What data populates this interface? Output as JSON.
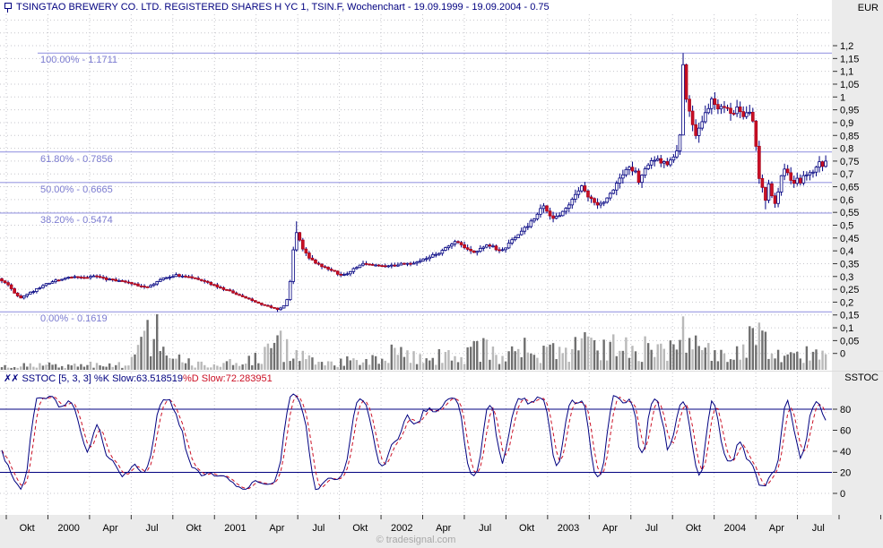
{
  "window": {
    "title": "TSINGTAO BREWERY CO. LTD. REGISTERED SHARES H YC 1, TSIN.F, Wochenchart - 19.09.1999 - 19.09.2004 - 0.75"
  },
  "watermark": "© tradesignal.com",
  "price_axis": {
    "unit": "EUR",
    "max": 1.2,
    "min": 0,
    "step": 0.05,
    "tick_labels": [
      "1,2",
      "1,15",
      "1,1",
      "1,05",
      "1",
      "0,95",
      "0,9",
      "0,85",
      "0,8",
      "0,75",
      "0,7",
      "0,65",
      "0,6",
      "0,55",
      "0,5",
      "0,45",
      "0,4",
      "0,35",
      "0,3",
      "0,25",
      "0,2",
      "0,15",
      "0,1",
      "0,05",
      "0"
    ]
  },
  "x_axis": {
    "tick_labels": [
      "Okt",
      "2000",
      "Apr",
      "Jul",
      "Okt",
      "2001",
      "Apr",
      "Jul",
      "Okt",
      "2002",
      "Apr",
      "Jul",
      "Okt",
      "2003",
      "Apr",
      "Jul",
      "Okt",
      "2004",
      "Apr",
      "Jul"
    ]
  },
  "sstoc": {
    "icon": "✗✗",
    "k_part": "SSTOC [5, 3, 3] %K Slow:63.518519",
    "d_part": "%D Slow:72.283951",
    "axis_title": "SSTOC",
    "y_ticks": [
      {
        "label": "80",
        "value": 80
      },
      {
        "label": "60",
        "value": 60
      },
      {
        "label": "40",
        "value": 40
      },
      {
        "label": "20",
        "value": 20
      },
      {
        "label": "0",
        "value": 0
      }
    ]
  },
  "colors": {
    "navy": "#000080",
    "red": "#cc1126",
    "red_edge": "#aa0018",
    "fib_line": "#9a9ae2",
    "fib_text": "#7b7bd0",
    "grid": "#c6c6cc",
    "vol_dark": "#6f6f6f",
    "vol_light": "#b9b9b9",
    "axis_text": "#000000",
    "tick": "#333333",
    "panel_bg": "#ffffff",
    "strip_bg": "#ebebeb"
  },
  "chart_data": [
    {
      "type": "candlestick",
      "title": "TSINGTAO BREWERY CO. LTD. REGISTERED SHARES H YC 1 (TSIN.F) weekly",
      "timeframe": "Wochenchart (weekly)",
      "period_start": "19.09.1999",
      "period_end": "19.09.2004",
      "ylabel": "EUR",
      "ylim": [
        0,
        1.2
      ],
      "grid": true,
      "n_candles": 261,
      "last_close": 0.75,
      "close_keyframes": [
        [
          0,
          0.285
        ],
        [
          2,
          0.27
        ],
        [
          4,
          0.235
        ],
        [
          6,
          0.215
        ],
        [
          8,
          0.23
        ],
        [
          11,
          0.25
        ],
        [
          14,
          0.27
        ],
        [
          17,
          0.285
        ],
        [
          20,
          0.292
        ],
        [
          23,
          0.3
        ],
        [
          26,
          0.296
        ],
        [
          29,
          0.3
        ],
        [
          32,
          0.292
        ],
        [
          35,
          0.286
        ],
        [
          38,
          0.28
        ],
        [
          41,
          0.272
        ],
        [
          44,
          0.262
        ],
        [
          46,
          0.258
        ],
        [
          48,
          0.272
        ],
        [
          50,
          0.288
        ],
        [
          52,
          0.296
        ],
        [
          55,
          0.305
        ],
        [
          58,
          0.3
        ],
        [
          61,
          0.292
        ],
        [
          64,
          0.28
        ],
        [
          67,
          0.265
        ],
        [
          70,
          0.25
        ],
        [
          73,
          0.237
        ],
        [
          76,
          0.222
        ],
        [
          79,
          0.208
        ],
        [
          82,
          0.192
        ],
        [
          85,
          0.18
        ],
        [
          87,
          0.172
        ],
        [
          89,
          0.185
        ],
        [
          90,
          0.21
        ],
        [
          91,
          0.28
        ],
        [
          92,
          0.4
        ],
        [
          93,
          0.47
        ],
        [
          94,
          0.44
        ],
        [
          95,
          0.41
        ],
        [
          97,
          0.375
        ],
        [
          99,
          0.352
        ],
        [
          101,
          0.34
        ],
        [
          103,
          0.33
        ],
        [
          105,
          0.318
        ],
        [
          107,
          0.305
        ],
        [
          109,
          0.312
        ],
        [
          111,
          0.33
        ],
        [
          113,
          0.345
        ],
        [
          115,
          0.352
        ],
        [
          118,
          0.345
        ],
        [
          121,
          0.338
        ],
        [
          124,
          0.344
        ],
        [
          127,
          0.35
        ],
        [
          130,
          0.352
        ],
        [
          133,
          0.365
        ],
        [
          136,
          0.382
        ],
        [
          139,
          0.4
        ],
        [
          141,
          0.42
        ],
        [
          143,
          0.44
        ],
        [
          145,
          0.425
        ],
        [
          147,
          0.405
        ],
        [
          149,
          0.39
        ],
        [
          151,
          0.41
        ],
        [
          153,
          0.425
        ],
        [
          155,
          0.415
        ],
        [
          157,
          0.4
        ],
        [
          159,
          0.415
        ],
        [
          161,
          0.44
        ],
        [
          163,
          0.462
        ],
        [
          165,
          0.487
        ],
        [
          167,
          0.512
        ],
        [
          169,
          0.545
        ],
        [
          171,
          0.578
        ],
        [
          172,
          0.55
        ],
        [
          174,
          0.523
        ],
        [
          176,
          0.54
        ],
        [
          178,
          0.565
        ],
        [
          180,
          0.6
        ],
        [
          182,
          0.638
        ],
        [
          183,
          0.66
        ],
        [
          184,
          0.63
        ],
        [
          186,
          0.6
        ],
        [
          188,
          0.578
        ],
        [
          190,
          0.595
        ],
        [
          192,
          0.625
        ],
        [
          194,
          0.66
        ],
        [
          196,
          0.7
        ],
        [
          198,
          0.728
        ],
        [
          200,
          0.705
        ],
        [
          201,
          0.665
        ],
        [
          202,
          0.698
        ],
        [
          204,
          0.737
        ],
        [
          206,
          0.758
        ],
        [
          208,
          0.748
        ],
        [
          210,
          0.74
        ],
        [
          212,
          0.768
        ],
        [
          213,
          0.79
        ],
        [
          214,
          0.86
        ],
        [
          215,
          1.12
        ],
        [
          216,
          1.0
        ],
        [
          217,
          0.945
        ],
        [
          218,
          0.89
        ],
        [
          219,
          0.855
        ],
        [
          220,
          0.88
        ],
        [
          221,
          0.91
        ],
        [
          222,
          0.94
        ],
        [
          224,
          0.985
        ],
        [
          226,
          0.945
        ],
        [
          228,
          0.968
        ],
        [
          230,
          0.928
        ],
        [
          232,
          0.955
        ],
        [
          234,
          0.932
        ],
        [
          236,
          0.946
        ],
        [
          237,
          0.9
        ],
        [
          238,
          0.8
        ],
        [
          239,
          0.68
        ],
        [
          240,
          0.645
        ],
        [
          241,
          0.6
        ],
        [
          242,
          0.655
        ],
        [
          243,
          0.615
        ],
        [
          244,
          0.585
        ],
        [
          245,
          0.63
        ],
        [
          246,
          0.695
        ],
        [
          247,
          0.725
        ],
        [
          248,
          0.7
        ],
        [
          249,
          0.672
        ],
        [
          250,
          0.66
        ],
        [
          251,
          0.678
        ],
        [
          252,
          0.668
        ],
        [
          253,
          0.688
        ],
        [
          255,
          0.7
        ],
        [
          257,
          0.725
        ],
        [
          258,
          0.74
        ],
        [
          259,
          0.73
        ],
        [
          260,
          0.75
        ]
      ],
      "high_overrides": {
        "93": 0.515,
        "215": 1.1711,
        "216": 1.13
      },
      "low_overrides": {
        "87": 0.162,
        "215": 0.85,
        "241": 0.562,
        "244": 0.568
      },
      "fibonacci_levels": [
        {
          "label": "100.00% - 1.1711",
          "pct": 100.0,
          "value": 1.1711
        },
        {
          "label": "61.80% - 0.7856",
          "pct": 61.8,
          "value": 0.7856
        },
        {
          "label": "50.00% - 0.6665",
          "pct": 50.0,
          "value": 0.6665
        },
        {
          "label": "38.20% - 0.5474",
          "pct": 38.2,
          "value": 0.5474
        },
        {
          "label": "0.00% - 0.1619",
          "pct": 0.0,
          "value": 0.1619
        }
      ]
    },
    {
      "type": "bar",
      "name": "volume",
      "position": "bottom of price panel",
      "envelope_keyframes": [
        [
          0,
          0.12
        ],
        [
          18,
          0.1
        ],
        [
          38,
          0.13
        ],
        [
          43,
          0.45
        ],
        [
          46,
          0.8
        ],
        [
          48,
          1.0
        ],
        [
          50,
          0.6
        ],
        [
          53,
          0.28
        ],
        [
          60,
          0.15
        ],
        [
          68,
          0.12
        ],
        [
          78,
          0.2
        ],
        [
          84,
          0.4
        ],
        [
          87,
          0.62
        ],
        [
          90,
          0.45
        ],
        [
          93,
          0.32
        ],
        [
          100,
          0.16
        ],
        [
          108,
          0.2
        ],
        [
          114,
          0.3
        ],
        [
          120,
          0.2
        ],
        [
          125,
          0.48
        ],
        [
          129,
          0.28
        ],
        [
          135,
          0.26
        ],
        [
          140,
          0.42
        ],
        [
          146,
          0.3
        ],
        [
          151,
          0.5
        ],
        [
          155,
          0.38
        ],
        [
          160,
          0.3
        ],
        [
          165,
          0.45
        ],
        [
          169,
          0.34
        ],
        [
          173,
          0.44
        ],
        [
          177,
          0.32
        ],
        [
          181,
          0.46
        ],
        [
          185,
          0.55
        ],
        [
          189,
          0.4
        ],
        [
          193,
          0.52
        ],
        [
          196,
          0.6
        ],
        [
          199,
          0.46
        ],
        [
          203,
          0.56
        ],
        [
          207,
          0.46
        ],
        [
          211,
          0.52
        ],
        [
          214,
          0.7
        ],
        [
          215,
          0.95
        ],
        [
          217,
          0.75
        ],
        [
          220,
          0.62
        ],
        [
          223,
          0.5
        ],
        [
          227,
          0.55
        ],
        [
          231,
          0.48
        ],
        [
          235,
          0.55
        ],
        [
          238,
          0.75
        ],
        [
          241,
          0.6
        ],
        [
          244,
          0.5
        ],
        [
          248,
          0.42
        ],
        [
          252,
          0.32
        ],
        [
          256,
          0.36
        ],
        [
          260,
          0.26
        ]
      ]
    },
    {
      "type": "line",
      "name": "SSTOC [5, 3, 3]",
      "ylim": [
        0,
        100
      ],
      "reference_lines": [
        80,
        20
      ],
      "y_tick_labels": [
        "80",
        "60",
        "40",
        "20",
        "0"
      ],
      "series": [
        {
          "name": "%K Slow",
          "last": 63.518519,
          "style": "solid navy"
        },
        {
          "name": "%D Slow",
          "last": 72.283951,
          "style": "dashed red"
        }
      ]
    }
  ]
}
